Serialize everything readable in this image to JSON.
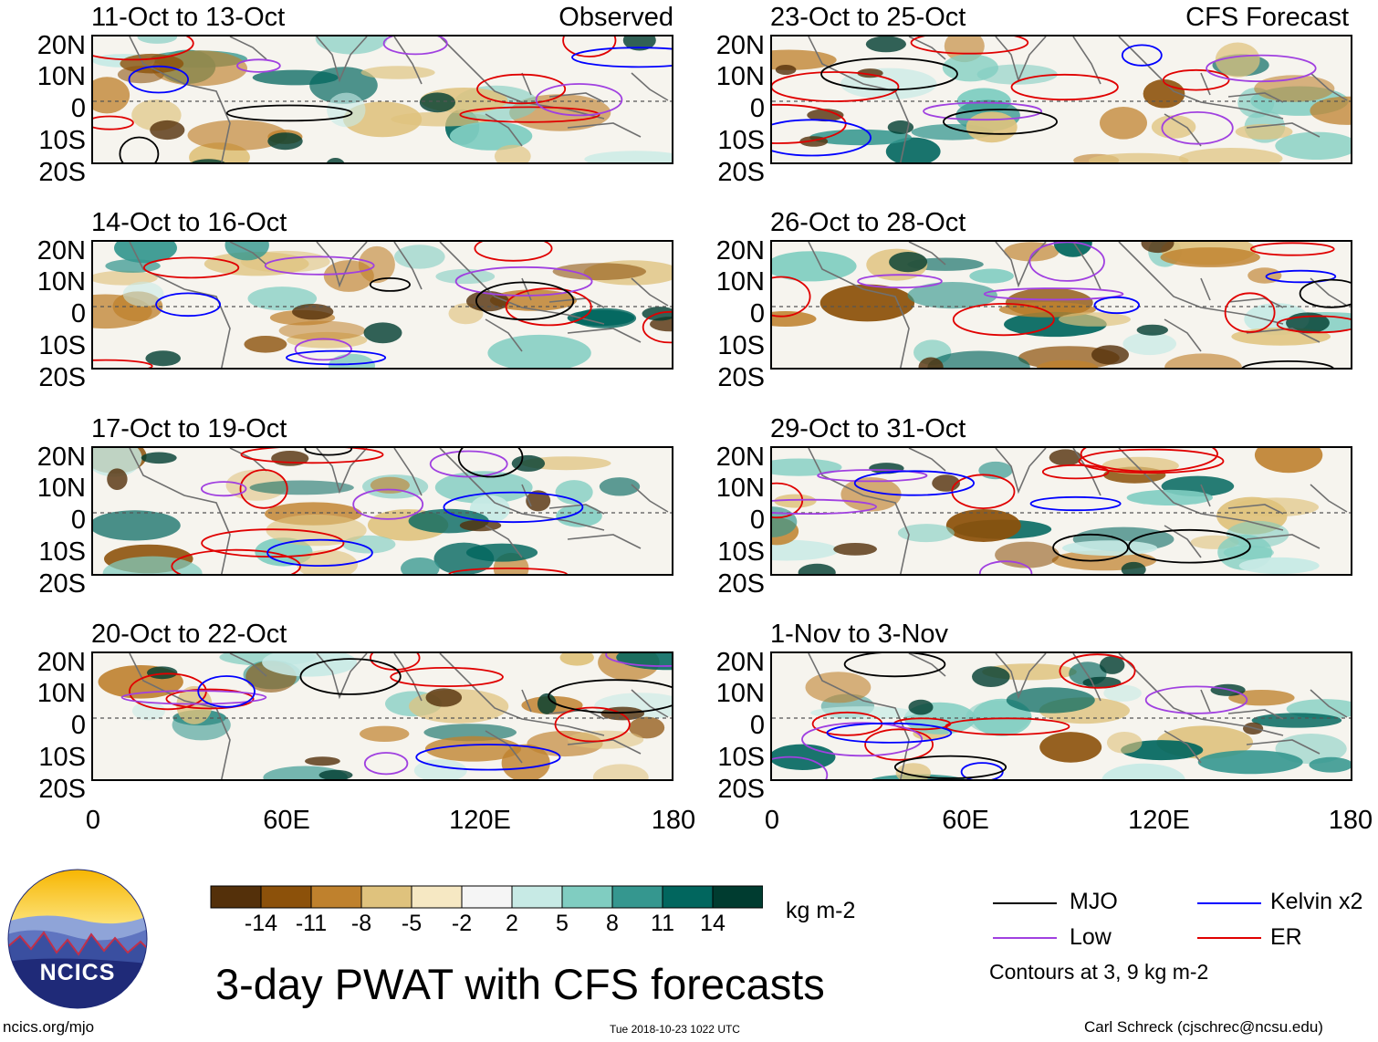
{
  "title": "3-day PWAT with CFS forecasts",
  "units": "kg m-2",
  "logo_text": "NCICS",
  "footer": {
    "url": "ncics.org/mjo",
    "timestamp": "Tue 2018-10-23 1022 UTC",
    "author": "Carl Schreck (cjschrec@ncsu.edu)"
  },
  "lat_labels": [
    "20N",
    "10N",
    "0",
    "10S",
    "20S"
  ],
  "lon_labels": [
    "0",
    "60E",
    "120E",
    "180"
  ],
  "columns": {
    "left_tag": "Observed",
    "right_tag": "CFS Forecast"
  },
  "panels": [
    {
      "title": "11-Oct to 13-Oct",
      "seed": 3
    },
    {
      "title": "14-Oct to 16-Oct",
      "seed": 7
    },
    {
      "title": "17-Oct to 19-Oct",
      "seed": 11
    },
    {
      "title": "20-Oct to 22-Oct",
      "seed": 17
    },
    {
      "title": "23-Oct to 25-Oct",
      "seed": 23
    },
    {
      "title": "26-Oct to 28-Oct",
      "seed": 29
    },
    {
      "title": "29-Oct to 31-Oct",
      "seed": 31
    },
    {
      "title": "1-Nov to 3-Nov",
      "seed": 37
    }
  ],
  "colorbar": {
    "labels": [
      "-14",
      "-11",
      "-8",
      "-5",
      "-2",
      "2",
      "5",
      "8",
      "11",
      "14"
    ],
    "colors": [
      "#54300a",
      "#8c510a",
      "#bf812d",
      "#dfc27d",
      "#f6e8c3",
      "#f5f5f5",
      "#c7eae5",
      "#80cdc1",
      "#35978f",
      "#01665e",
      "#003c30"
    ]
  },
  "legend": {
    "items": [
      {
        "label": "MJO",
        "color": "#000000"
      },
      {
        "label": "Kelvin x2",
        "color": "#0000ff"
      },
      {
        "label": "Low",
        "color": "#a040e0"
      },
      {
        "label": "ER",
        "color": "#e00000"
      }
    ],
    "note": "Contours at 3, 9 kg m-2"
  }
}
